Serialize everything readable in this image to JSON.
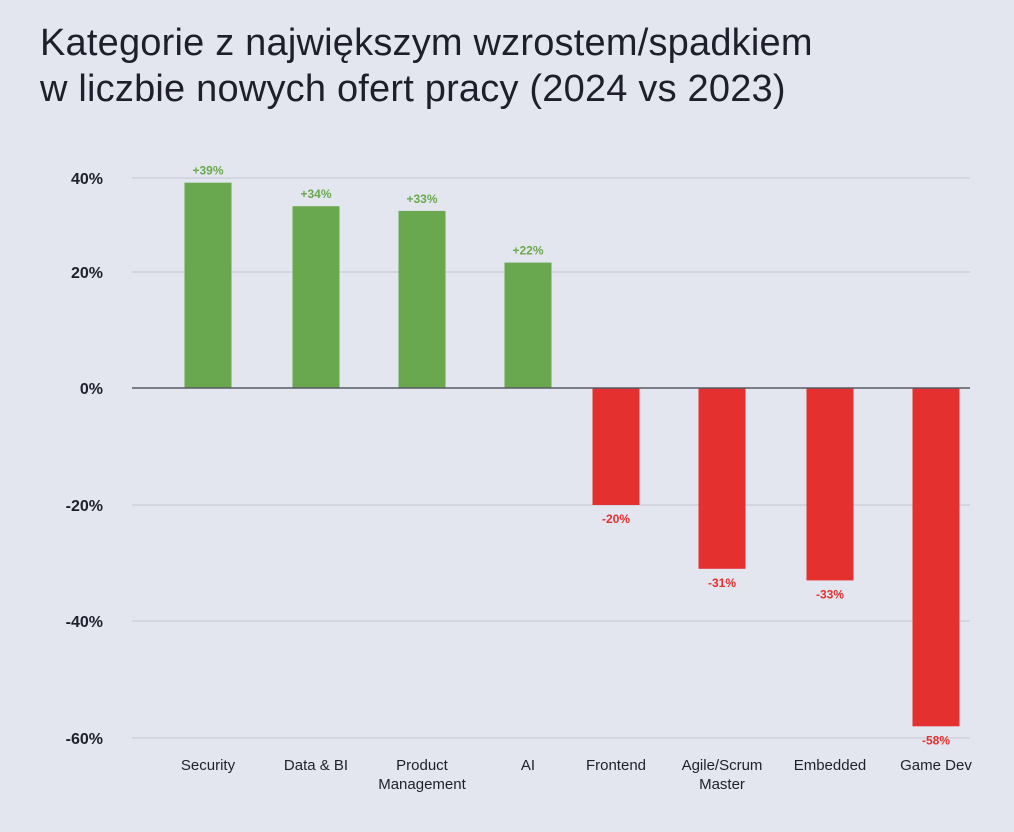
{
  "title_lines": [
    "Kategorie z największym wzrostem/spadkiem",
    "w liczbie nowych ofert pracy (2024 vs 2023)"
  ],
  "colors": {
    "positive": "#6aa84f",
    "negative": "#e53030",
    "grid": "#c3c6d0",
    "axis": "#555a66"
  },
  "chart_data": {
    "type": "bar",
    "title": "Kategorie z największym wzrostem/spadkiem w liczbie nowych ofert pracy (2024 vs 2023)",
    "categories": [
      [
        "Security"
      ],
      [
        "Data & BI"
      ],
      [
        "Product",
        "Management"
      ],
      [
        "AI"
      ],
      [
        "Frontend"
      ],
      [
        "Agile/Scrum",
        "Master"
      ],
      [
        "Embedded"
      ],
      [
        "Game Dev"
      ]
    ],
    "values": [
      39,
      34,
      33,
      22,
      -20,
      -31,
      -33,
      -58
    ],
    "value_labels": [
      "+39%",
      "+34%",
      "+33%",
      "+22%",
      "-20%",
      "-31%",
      "-33%",
      "-58%"
    ],
    "yticks": [
      40,
      20,
      0,
      -20,
      -40,
      -60
    ],
    "ytick_labels": [
      "40%",
      "20%",
      "0%",
      "-20%",
      "-40%",
      "-60%"
    ],
    "ylim": [
      -60,
      40
    ],
    "xlabel": "",
    "ylabel": ""
  }
}
